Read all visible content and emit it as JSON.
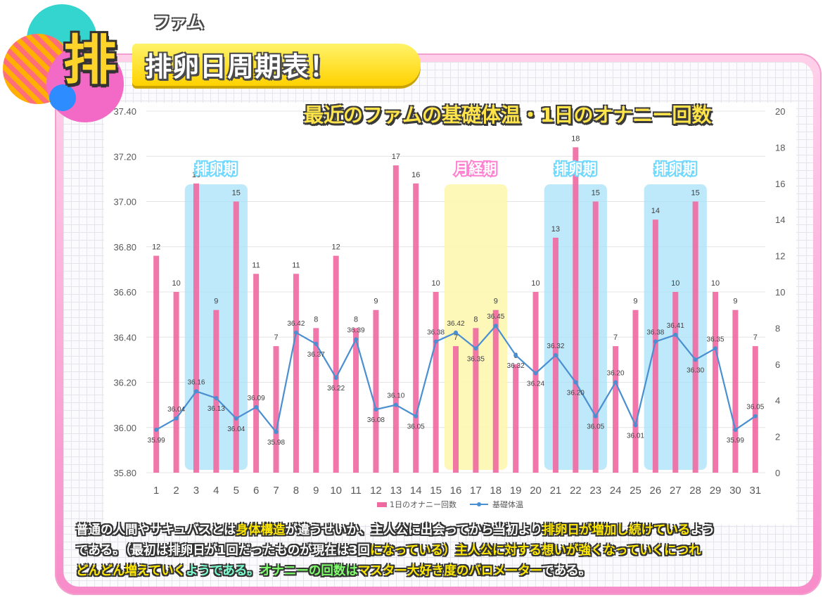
{
  "header": {
    "ruby": "ファム",
    "big_char": "排",
    "title": "排卵日周期表！",
    "subtitle": "最近のファムの基礎体温・1日のオナニー回数"
  },
  "chart_data": {
    "type": "bar+line",
    "categories": [
      "1",
      "2",
      "3",
      "4",
      "5",
      "6",
      "7",
      "8",
      "9",
      "10",
      "11",
      "12",
      "13",
      "14",
      "15",
      "16",
      "17",
      "18",
      "19",
      "20",
      "21",
      "22",
      "23",
      "24",
      "25",
      "26",
      "27",
      "28",
      "29",
      "30",
      "31"
    ],
    "series": [
      {
        "name": "1日のオナニー回数",
        "type": "bar",
        "axis": "right",
        "values": [
          12,
          10,
          16,
          9,
          15,
          11,
          7,
          11,
          8,
          12,
          8,
          9,
          17,
          16,
          10,
          7,
          8,
          9,
          6,
          10,
          13,
          18,
          15,
          7,
          9,
          14,
          10,
          15,
          10,
          9,
          7
        ]
      },
      {
        "name": "基礎体温",
        "type": "line",
        "axis": "left",
        "values": [
          35.99,
          36.04,
          36.16,
          36.13,
          36.04,
          36.09,
          35.98,
          36.42,
          36.37,
          36.22,
          36.39,
          36.08,
          36.1,
          36.05,
          36.38,
          36.42,
          36.35,
          36.45,
          36.32,
          36.24,
          36.32,
          36.2,
          36.05,
          36.2,
          36.01,
          36.38,
          36.41,
          36.3,
          36.35,
          35.99,
          36.05
        ]
      }
    ],
    "left_axis": {
      "ticks": [
        "35.80",
        "36.00",
        "36.20",
        "36.40",
        "36.60",
        "36.80",
        "37.00",
        "37.20",
        "37.40"
      ],
      "min": 35.8,
      "max": 37.4
    },
    "right_axis": {
      "ticks": [
        "0",
        "2",
        "4",
        "6",
        "8",
        "10",
        "12",
        "14",
        "16",
        "18",
        "20"
      ],
      "min": 0,
      "max": 20
    },
    "periods": [
      {
        "label": "排卵期",
        "start": 3,
        "end": 5,
        "kind": "ovulation"
      },
      {
        "label": "月経期",
        "start": 16,
        "end": 18,
        "kind": "menstrual"
      },
      {
        "label": "排卵期",
        "start": 21,
        "end": 23,
        "kind": "ovulation"
      },
      {
        "label": "排卵期",
        "start": 26,
        "end": 28,
        "kind": "ovulation"
      }
    ],
    "legend_position": "bottom",
    "colors": {
      "bar": "#f06aa2",
      "line": "#4a8fd1",
      "ovulation": "#a8e2f8",
      "menstrual": "#fdf6b0",
      "period_label": "#ffffff"
    }
  },
  "caption": {
    "line1_a": "普通の人間やサキュバスとは",
    "line1_b": "身体構造",
    "line1_c": "が違うせいか、主人公に出会ってから当初より",
    "line1_d": "排卵日が増加し続けている",
    "line1_e": "よう",
    "line2_a": "である。（最初は排卵日が1回だったものが現在は3回",
    "line2_b": "になっている）主人公に対する想いが強くなっていくにつれ",
    "line3_a": "どんどん増えていく",
    "line3_b": "ようである。",
    "line3_c": "オナニーの回数は",
    "line3_d": "マスター大好き度のバロメーター",
    "line3_e": "である。"
  }
}
